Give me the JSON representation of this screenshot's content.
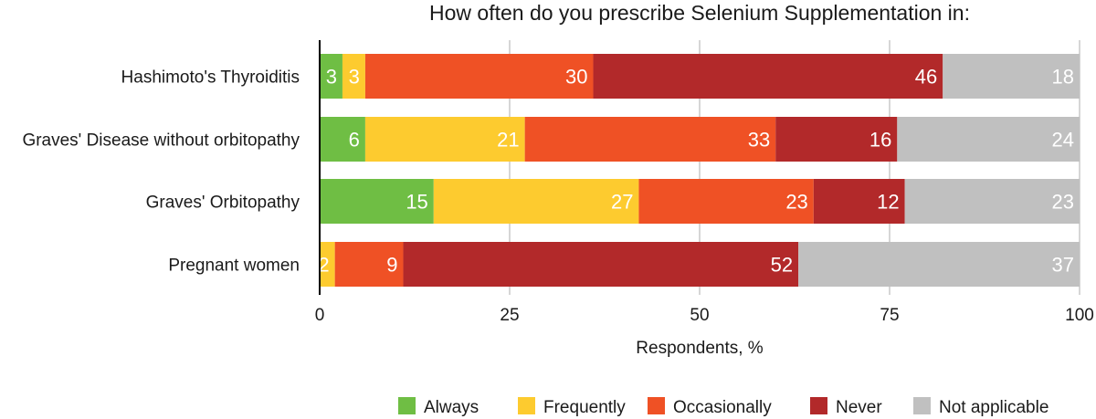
{
  "chart_data": {
    "type": "bar",
    "orientation": "horizontal",
    "stacked": true,
    "title": "How often do you prescribe Selenium Supplementation in:",
    "xlabel": "Respondents, %",
    "ylabel": "",
    "xlim": [
      0,
      100
    ],
    "xticks": [
      0,
      25,
      50,
      75,
      100
    ],
    "grid": true,
    "legend_position": "bottom-right",
    "categories": [
      "Hashimoto's Thyroiditis",
      "Graves' Disease without orbitopathy",
      "Graves' Orbitopathy",
      "Pregnant women"
    ],
    "series": [
      {
        "name": "Always",
        "color": "#6fbe44",
        "values": [
          3,
          6,
          15,
          0
        ]
      },
      {
        "name": "Frequently",
        "color": "#fdcb2f",
        "values": [
          3,
          21,
          27,
          2
        ]
      },
      {
        "name": "Occasionally",
        "color": "#ef5125",
        "values": [
          30,
          33,
          23,
          9
        ]
      },
      {
        "name": "Never",
        "color": "#b2292a",
        "values": [
          46,
          16,
          12,
          52
        ]
      },
      {
        "name": "Not applicable",
        "color": "#c0c0c0",
        "values": [
          18,
          24,
          23,
          37
        ]
      }
    ]
  }
}
